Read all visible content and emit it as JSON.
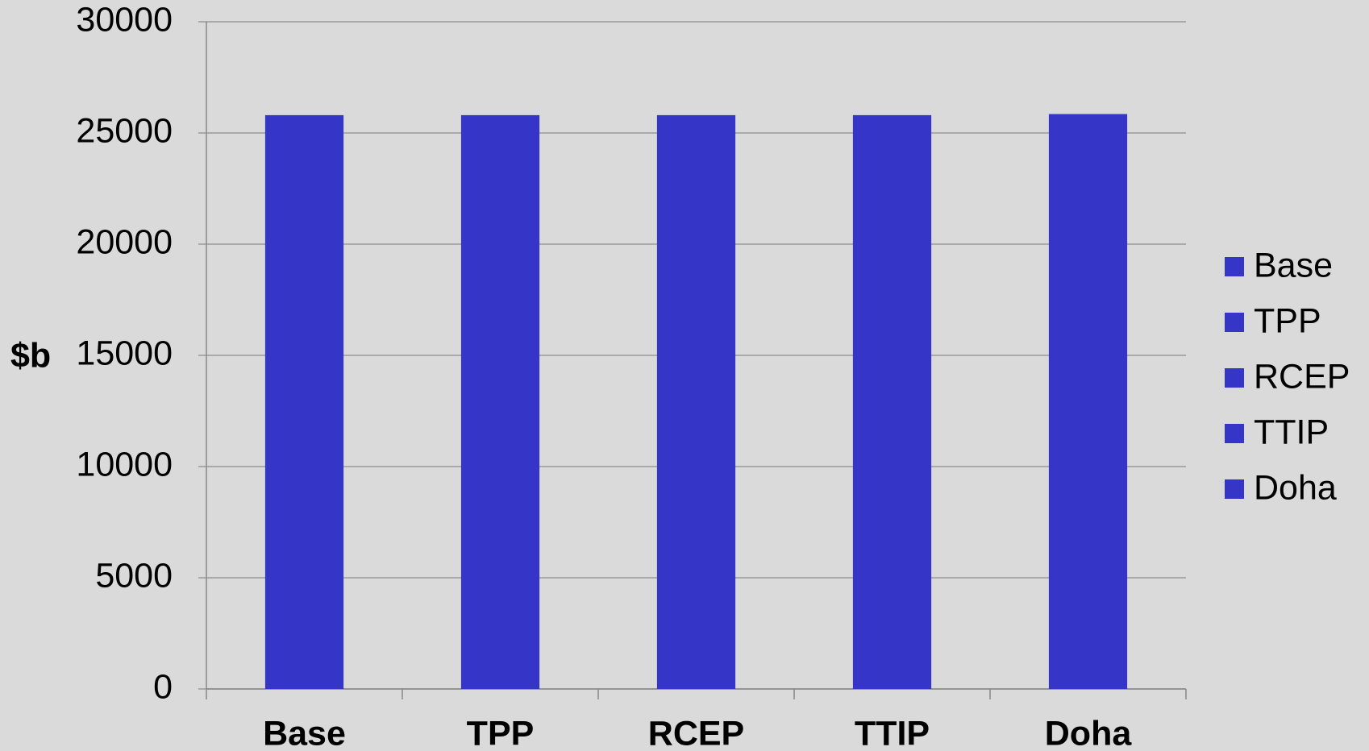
{
  "chart_data": {
    "type": "bar",
    "ylabel": "$b",
    "categories": [
      "Base",
      "TPP",
      "RCEP",
      "TTIP",
      "Doha"
    ],
    "values": [
      25800,
      25800,
      25800,
      25800,
      25850
    ],
    "color": "#3535c8",
    "ylim": [
      0,
      30000
    ],
    "yticks": [
      0,
      5000,
      10000,
      15000,
      20000,
      25000,
      30000
    ],
    "grid": true,
    "legend": "right"
  }
}
